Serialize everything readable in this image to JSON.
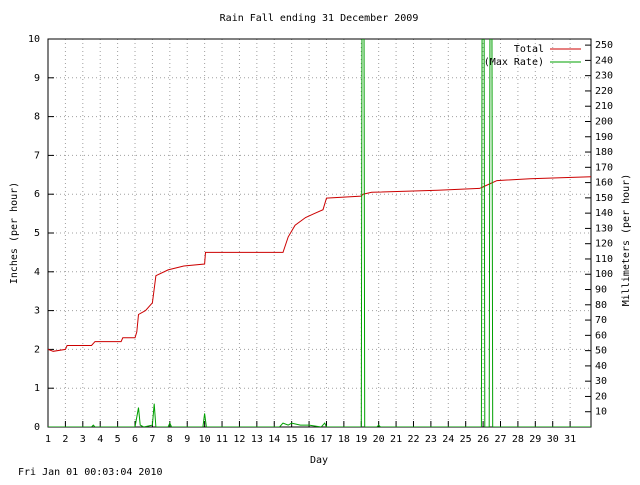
{
  "chart_data": {
    "type": "line",
    "title": "Rain Fall ending 31 December 2009",
    "xlabel": "Day",
    "ylabel": "Inches (per hour)",
    "y2label": "Millimeters (per hour)",
    "footer": "Fri Jan 01 00:03:04 2010",
    "xlim": [
      1,
      32.2
    ],
    "xticks": [
      1,
      2,
      3,
      4,
      5,
      6,
      7,
      8,
      9,
      10,
      11,
      12,
      13,
      14,
      15,
      16,
      17,
      18,
      19,
      20,
      21,
      22,
      23,
      24,
      25,
      26,
      27,
      28,
      29,
      30,
      31
    ],
    "ylim": [
      0,
      10
    ],
    "yticks": [
      0,
      1,
      2,
      3,
      4,
      5,
      6,
      7,
      8,
      9,
      10
    ],
    "y2lim": [
      0,
      254
    ],
    "y2ticks": [
      10,
      20,
      30,
      40,
      50,
      60,
      70,
      80,
      90,
      100,
      110,
      120,
      130,
      140,
      150,
      160,
      170,
      180,
      190,
      200,
      210,
      220,
      230,
      240,
      250
    ],
    "grid": true,
    "legend": "top-right",
    "series": [
      {
        "name": "Total",
        "color": "#cc0000",
        "x": [
          1,
          1.3,
          2,
          2.1,
          3.5,
          3.7,
          5.2,
          5.3,
          6,
          6.1,
          6.2,
          6.6,
          7,
          7.2,
          7.9,
          8.8,
          10,
          10.05,
          14.5,
          14.8,
          15.2,
          15.8,
          16.3,
          16.8,
          17,
          19,
          19.1,
          19.6,
          23.4,
          25.8,
          26.3,
          26.8,
          28.7,
          32.2
        ],
        "values": [
          2,
          1.95,
          2,
          2.1,
          2.1,
          2.2,
          2.2,
          2.3,
          2.3,
          2.45,
          2.9,
          3,
          3.2,
          3.9,
          4.05,
          4.15,
          4.2,
          4.5,
          4.5,
          4.9,
          5.2,
          5.4,
          5.5,
          5.6,
          5.9,
          5.95,
          6,
          6.05,
          6.1,
          6.15,
          6.25,
          6.35,
          6.4,
          6.45
        ]
      },
      {
        "name": "(Max Rate)",
        "color": "#00a000",
        "x": [
          1,
          3.5,
          3.6,
          3.7,
          6,
          6.2,
          6.3,
          6.5,
          7,
          7.1,
          7.2,
          7.9,
          8,
          8.1,
          9.9,
          10,
          10.1,
          14.3,
          14.5,
          14.8,
          15,
          15.5,
          16,
          16.7,
          16.9,
          17,
          19,
          19.05,
          19.15,
          19.2,
          19.9,
          20,
          20.1,
          25.9,
          25.95,
          26.05,
          26.1,
          26.35,
          26.4,
          26.5,
          26.55,
          32.2
        ],
        "values": [
          0,
          0,
          0.05,
          0,
          0,
          0.5,
          0.05,
          0,
          0.05,
          0.6,
          0,
          0,
          0.1,
          0,
          0,
          0.35,
          0,
          0,
          0.1,
          0.05,
          0.1,
          0.05,
          0.05,
          0,
          0.1,
          0,
          0,
          12,
          12,
          0,
          0,
          0.05,
          0,
          0,
          12,
          12,
          0,
          0,
          12,
          12,
          0,
          0
        ]
      }
    ]
  }
}
